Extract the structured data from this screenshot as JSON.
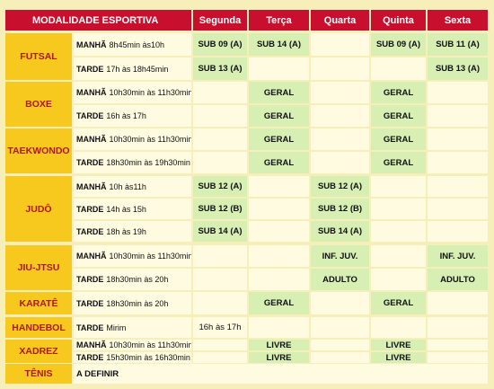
{
  "header": {
    "modality": "MODALIDADE ESPORTIVA",
    "days": [
      "Segunda",
      "Terça",
      "Quarta",
      "Quinta",
      "Sexta"
    ]
  },
  "sports": [
    {
      "name": "FUTSAL",
      "rows": [
        {
          "label": "MANHÃ",
          "time": "8h45min às10h",
          "cells": [
            "SUB 09 (A)",
            "SUB 14 (A)",
            "",
            "SUB 09 (A)",
            "SUB 11 (A)"
          ]
        },
        {
          "label": "TARDE",
          "time": "17h às 18h45min",
          "cells": [
            "SUB 13 (A)",
            "",
            "",
            "",
            "SUB 13 (A)"
          ]
        }
      ]
    },
    {
      "name": "BOXE",
      "rows": [
        {
          "label": "MANHÃ",
          "time": "10h30min às 11h30min",
          "cells": [
            "",
            "GERAL",
            "",
            "GERAL",
            ""
          ]
        },
        {
          "label": "TARDE",
          "time": "16h às 17h",
          "cells": [
            "",
            "GERAL",
            "",
            "GERAL",
            ""
          ]
        }
      ]
    },
    {
      "name": "TAEKWONDO",
      "rows": [
        {
          "label": "MANHÃ",
          "time": "10h30min às 11h30min",
          "cells": [
            "",
            "GERAL",
            "",
            "GERAL",
            ""
          ]
        },
        {
          "label": "TARDE",
          "time": "18h30min às 19h30min",
          "cells": [
            "",
            "GERAL",
            "",
            "GERAL",
            ""
          ]
        }
      ]
    },
    {
      "name": "JUDÔ",
      "rows": [
        {
          "label": "MANHÃ",
          "time": "10h às11h",
          "cells": [
            "SUB 12 (A)",
            "",
            "SUB 12 (A)",
            "",
            ""
          ]
        },
        {
          "label": "TARDE",
          "time": "14h às 15h",
          "cells": [
            "SUB 12 (B)",
            "",
            "SUB 12 (B)",
            "",
            ""
          ]
        },
        {
          "label": "TARDE",
          "time": "18h às 19h",
          "cells": [
            "SUB 14 (A)",
            "",
            "SUB 14 (A)",
            "",
            ""
          ]
        }
      ]
    },
    {
      "name": "JIU-JTSU",
      "rows": [
        {
          "label": "MANHÃ",
          "time": "10h30min às 11h30min",
          "cells": [
            "",
            "",
            "INF. JUV.",
            "",
            "INF. JUV."
          ]
        },
        {
          "label": "TARDE",
          "time": "18h30min às 20h",
          "cells": [
            "",
            "",
            "ADULTO",
            "",
            "ADULTO"
          ]
        }
      ]
    },
    {
      "name": "KARATÊ",
      "rows": [
        {
          "label": "TARDE",
          "time": "18h30min às 20h",
          "cells": [
            "",
            "GERAL",
            "",
            "GERAL",
            ""
          ]
        }
      ]
    },
    {
      "name": "HANDEBOL",
      "rows": [
        {
          "label": "TARDE",
          "time": "Mirim",
          "cells": [
            "16h às 17h",
            "",
            "",
            "",
            ""
          ]
        }
      ]
    },
    {
      "name": "XADREZ",
      "rows": [
        {
          "label": "MANHÃ",
          "time": "10h30min às 11h30min",
          "cells": [
            "",
            "LIVRE",
            "",
            "LIVRE",
            ""
          ]
        },
        {
          "label": "TARDE",
          "time": "15h30min às 16h30min",
          "cells": [
            "",
            "LIVRE",
            "",
            "LIVRE",
            ""
          ]
        }
      ]
    },
    {
      "name": "TÊNIS",
      "full": "A DEFINIR"
    }
  ]
}
